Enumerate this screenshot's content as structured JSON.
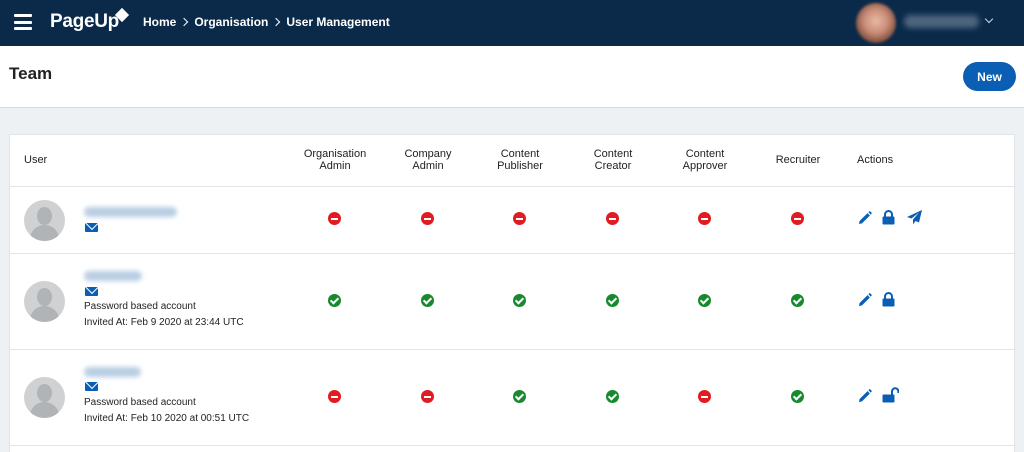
{
  "app": {
    "logo": "PageUp"
  },
  "breadcrumb": {
    "home": "Home",
    "organisation": "Organisation",
    "current": "User Management"
  },
  "page": {
    "title": "Team",
    "new_label": "New"
  },
  "table": {
    "columns": {
      "user": "User",
      "org_admin": [
        "Organisation",
        "Admin"
      ],
      "company_admin": [
        "Company",
        "Admin"
      ],
      "content_publisher": [
        "Content",
        "Publisher"
      ],
      "content_creator": [
        "Content",
        "Creator"
      ],
      "content_approver": [
        "Content",
        "Approver"
      ],
      "recruiter": "Recruiter",
      "actions": "Actions"
    },
    "rows": [
      {
        "account_type": "",
        "invited_at": "",
        "roles": {
          "org_admin": false,
          "company_admin": false,
          "content_publisher": false,
          "content_creator": false,
          "content_approver": false,
          "recruiter": false
        },
        "actions": [
          "edit-icon",
          "lock-icon",
          "send-icon"
        ]
      },
      {
        "account_type": "Password based account",
        "invited_at": "Invited At: Feb 9 2020 at 23:44 UTC",
        "roles": {
          "org_admin": true,
          "company_admin": true,
          "content_publisher": true,
          "content_creator": true,
          "content_approver": true,
          "recruiter": true
        },
        "actions": [
          "edit-icon",
          "lock-icon"
        ]
      },
      {
        "account_type": "Password based account",
        "invited_at": "Invited At: Feb 10 2020 at 00:51 UTC",
        "roles": {
          "org_admin": false,
          "company_admin": false,
          "content_publisher": true,
          "content_creator": true,
          "content_approver": false,
          "recruiter": true
        },
        "actions": [
          "edit-icon",
          "unlock-icon"
        ]
      }
    ]
  },
  "colors": {
    "topbar": "#0b2a4a",
    "accent": "#0a5fb4",
    "deny": "#e01b22",
    "allow": "#178a2d"
  }
}
